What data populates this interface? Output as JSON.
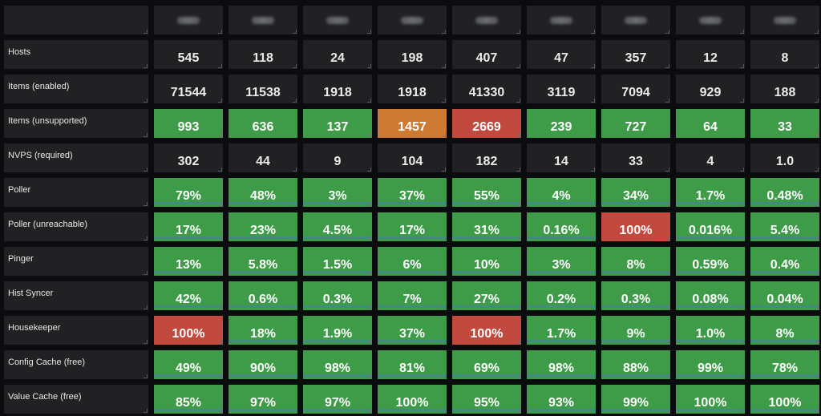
{
  "colors": {
    "background": "#0b0c0e",
    "panel": "#212124",
    "green": "#3e9b47",
    "red": "#c2493d",
    "orange": "#cf7a32",
    "text": "#ececec"
  },
  "columns_count": 9,
  "rows": [
    {
      "label": "Hosts",
      "cells": [
        {
          "text": "545",
          "status": "none"
        },
        {
          "text": "118",
          "status": "none"
        },
        {
          "text": "24",
          "status": "none"
        },
        {
          "text": "198",
          "status": "none"
        },
        {
          "text": "407",
          "status": "none"
        },
        {
          "text": "47",
          "status": "none"
        },
        {
          "text": "357",
          "status": "none"
        },
        {
          "text": "12",
          "status": "none"
        },
        {
          "text": "8",
          "status": "none"
        }
      ]
    },
    {
      "label": "Items (enabled)",
      "cells": [
        {
          "text": "71544",
          "status": "none"
        },
        {
          "text": "11538",
          "status": "none"
        },
        {
          "text": "1918",
          "status": "none"
        },
        {
          "text": "1918",
          "status": "none"
        },
        {
          "text": "41330",
          "status": "none"
        },
        {
          "text": "3119",
          "status": "none"
        },
        {
          "text": "7094",
          "status": "none"
        },
        {
          "text": "929",
          "status": "none"
        },
        {
          "text": "188",
          "status": "none"
        }
      ]
    },
    {
      "label": "Items (unsupported)",
      "cells": [
        {
          "text": "993",
          "status": "green"
        },
        {
          "text": "636",
          "status": "green"
        },
        {
          "text": "137",
          "status": "green"
        },
        {
          "text": "1457",
          "status": "orange"
        },
        {
          "text": "2669",
          "status": "red"
        },
        {
          "text": "239",
          "status": "green"
        },
        {
          "text": "727",
          "status": "green"
        },
        {
          "text": "64",
          "status": "green"
        },
        {
          "text": "33",
          "status": "green"
        }
      ]
    },
    {
      "label": "NVPS (required)",
      "cells": [
        {
          "text": "302",
          "status": "none"
        },
        {
          "text": "44",
          "status": "none"
        },
        {
          "text": "9",
          "status": "none"
        },
        {
          "text": "104",
          "status": "none"
        },
        {
          "text": "182",
          "status": "none"
        },
        {
          "text": "14",
          "status": "none"
        },
        {
          "text": "33",
          "status": "none"
        },
        {
          "text": "4",
          "status": "none"
        },
        {
          "text": "1.0",
          "status": "none"
        }
      ]
    },
    {
      "label": "Poller",
      "cells": [
        {
          "text": "79%",
          "status": "green"
        },
        {
          "text": "48%",
          "status": "green"
        },
        {
          "text": "3%",
          "status": "green"
        },
        {
          "text": "37%",
          "status": "green"
        },
        {
          "text": "55%",
          "status": "green"
        },
        {
          "text": "4%",
          "status": "green"
        },
        {
          "text": "34%",
          "status": "green"
        },
        {
          "text": "1.7%",
          "status": "green"
        },
        {
          "text": "0.48%",
          "status": "green"
        }
      ]
    },
    {
      "label": "Poller (unreachable)",
      "cells": [
        {
          "text": "17%",
          "status": "green"
        },
        {
          "text": "23%",
          "status": "green"
        },
        {
          "text": "4.5%",
          "status": "green"
        },
        {
          "text": "17%",
          "status": "green"
        },
        {
          "text": "31%",
          "status": "green"
        },
        {
          "text": "0.16%",
          "status": "green"
        },
        {
          "text": "100%",
          "status": "red"
        },
        {
          "text": "0.016%",
          "status": "green"
        },
        {
          "text": "5.4%",
          "status": "green"
        }
      ]
    },
    {
      "label": "Pinger",
      "cells": [
        {
          "text": "13%",
          "status": "green"
        },
        {
          "text": "5.8%",
          "status": "green"
        },
        {
          "text": "1.5%",
          "status": "green"
        },
        {
          "text": "6%",
          "status": "green"
        },
        {
          "text": "10%",
          "status": "green"
        },
        {
          "text": "3%",
          "status": "green"
        },
        {
          "text": "8%",
          "status": "green"
        },
        {
          "text": "0.59%",
          "status": "green"
        },
        {
          "text": "0.4%",
          "status": "green"
        }
      ]
    },
    {
      "label": "Hist Syncer",
      "cells": [
        {
          "text": "42%",
          "status": "green"
        },
        {
          "text": "0.6%",
          "status": "green"
        },
        {
          "text": "0.3%",
          "status": "green"
        },
        {
          "text": "7%",
          "status": "green"
        },
        {
          "text": "27%",
          "status": "green"
        },
        {
          "text": "0.2%",
          "status": "green"
        },
        {
          "text": "0.3%",
          "status": "green"
        },
        {
          "text": "0.08%",
          "status": "green"
        },
        {
          "text": "0.04%",
          "status": "green"
        }
      ]
    },
    {
      "label": "Housekeeper",
      "cells": [
        {
          "text": "100%",
          "status": "red"
        },
        {
          "text": "18%",
          "status": "green"
        },
        {
          "text": "1.9%",
          "status": "green"
        },
        {
          "text": "37%",
          "status": "green"
        },
        {
          "text": "100%",
          "status": "red"
        },
        {
          "text": "1.7%",
          "status": "green"
        },
        {
          "text": "9%",
          "status": "green"
        },
        {
          "text": "1.0%",
          "status": "green"
        },
        {
          "text": "8%",
          "status": "green"
        }
      ]
    },
    {
      "label": "Config Cache (free)",
      "cells": [
        {
          "text": "49%",
          "status": "green"
        },
        {
          "text": "90%",
          "status": "green"
        },
        {
          "text": "98%",
          "status": "green"
        },
        {
          "text": "81%",
          "status": "green"
        },
        {
          "text": "69%",
          "status": "green"
        },
        {
          "text": "98%",
          "status": "green"
        },
        {
          "text": "88%",
          "status": "green"
        },
        {
          "text": "99%",
          "status": "green"
        },
        {
          "text": "78%",
          "status": "green"
        }
      ]
    },
    {
      "label": "Value Cache (free)",
      "cells": [
        {
          "text": "85%",
          "status": "green"
        },
        {
          "text": "97%",
          "status": "green"
        },
        {
          "text": "97%",
          "status": "green"
        },
        {
          "text": "100%",
          "status": "green"
        },
        {
          "text": "95%",
          "status": "green"
        },
        {
          "text": "93%",
          "status": "green"
        },
        {
          "text": "99%",
          "status": "green"
        },
        {
          "text": "100%",
          "status": "green"
        },
        {
          "text": "100%",
          "status": "green"
        }
      ]
    }
  ]
}
